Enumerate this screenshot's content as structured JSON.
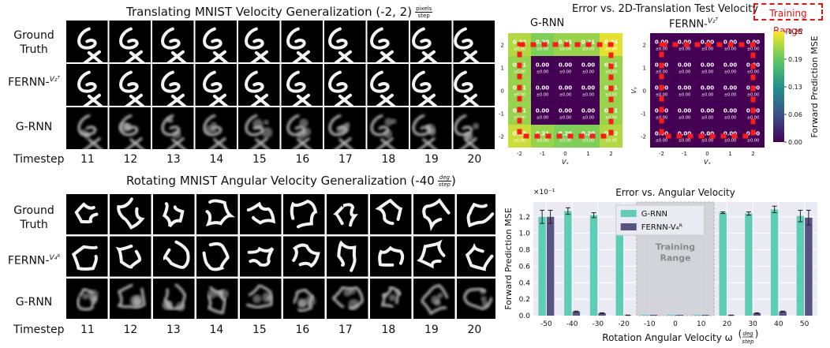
{
  "top_panel": {
    "title": "Translating MNIST Velocity Generalization (-2, 2)",
    "title_unit_num": "pixels",
    "title_unit_den": "step",
    "rows": [
      {
        "label_a": "Ground",
        "label_b": "Truth"
      },
      {
        "label_a": "FERNN-",
        "label_sup": "V₂ᵀ"
      },
      {
        "label_a": "G-RNN"
      }
    ],
    "timestep_label": "Timestep",
    "timesteps": [
      "11",
      "12",
      "13",
      "14",
      "15",
      "16",
      "17",
      "18",
      "19",
      "20"
    ]
  },
  "bottom_panel": {
    "title": "Rotating MNIST Angular Velocity Generalization (-40",
    "title_unit_num": "deg",
    "title_unit_den": "step",
    "title_end": ")",
    "rows": [
      {
        "label_a": "Ground",
        "label_b": "Truth"
      },
      {
        "label_a": "FERNN-",
        "label_sup": "V₄ᴿ"
      },
      {
        "label_a": "G-RNN"
      }
    ],
    "timestep_label": "Timestep",
    "timesteps": [
      "11",
      "12",
      "13",
      "14",
      "15",
      "16",
      "17",
      "18",
      "19",
      "20"
    ]
  },
  "heatmap": {
    "title": "Error vs. 2D-Translation Test Velocity",
    "legend_box": "Training Range",
    "left_title": "G-RNN",
    "right_title": "FERNN-",
    "right_title_sup": "V₂ᵀ",
    "xlabel": "Vₓ",
    "ylabel": "Vᵧ",
    "ticks": [
      "-2",
      "-1",
      "0",
      "1",
      "2"
    ],
    "colorbar_label": "Forward Prediction MSE",
    "colorbar_ticks": [
      "0.25",
      "0.19",
      "0.13",
      "0.06",
      "0.00"
    ],
    "grnn_values": [
      [
        "0.22",
        "0.20",
        "0.21",
        "0.21",
        "0.24"
      ],
      [
        "0.21",
        "0.00",
        "0.00",
        "0.00",
        "0.21"
      ],
      [
        "0.21",
        "0.00",
        "0.00",
        "0.00",
        "0.21"
      ],
      [
        "0.21",
        "0.00",
        "0.00",
        "0.00",
        "0.21"
      ],
      [
        "0.23",
        "0.21",
        "0.20",
        "0.20",
        "0.22"
      ]
    ],
    "fernn_values": [
      [
        "0.00",
        "0.00",
        "0.00",
        "0.00",
        "0.00"
      ],
      [
        "0.00",
        "0.00",
        "0.00",
        "0.00",
        "0.00"
      ],
      [
        "0.00",
        "0.00",
        "0.00",
        "0.00",
        "0.00"
      ],
      [
        "0.00",
        "0.00",
        "0.00",
        "0.00",
        "0.00"
      ],
      [
        "0.00",
        "0.00",
        "0.00",
        "0.00",
        "0.00"
      ]
    ],
    "std_label": "±0.00"
  },
  "chart_data": {
    "type": "bar",
    "title": "Error vs. Angular Velocity",
    "xlabel": "Rotation Angular Velocity ω",
    "xlabel_unit_num": "deg",
    "xlabel_unit_den": "step",
    "ylabel": "Forward Prediction MSE",
    "y_multiplier": "×10⁻¹",
    "categories": [
      "-50",
      "-40",
      "-30",
      "-20",
      "-10",
      "0",
      "10",
      "20",
      "30",
      "40",
      "50"
    ],
    "ylim": [
      0,
      1.38
    ],
    "yticks": [
      "0.0",
      "0.2",
      "0.4",
      "0.6",
      "0.8",
      "1.0",
      "1.2"
    ],
    "training_range_label_a": "Training",
    "training_range_label_b": "Range",
    "series": [
      {
        "name": "G-RNN",
        "color": "#5ecdb5",
        "values": [
          1.2,
          1.27,
          1.22,
          1.22,
          0.01,
          0.01,
          0.01,
          1.25,
          1.24,
          1.29,
          1.21
        ],
        "err": [
          0.08,
          0.04,
          0.03,
          0.02,
          0.0,
          0.0,
          0.0,
          0.01,
          0.02,
          0.04,
          0.07
        ]
      },
      {
        "name": "FERNN-V₄ᴿ",
        "color": "#595383",
        "values": [
          1.2,
          0.05,
          0.03,
          0.005,
          0.01,
          0.01,
          0.01,
          0.005,
          0.03,
          0.05,
          1.19
        ],
        "err": [
          0.08,
          0.005,
          0.005,
          0.002,
          0.0,
          0.0,
          0.0,
          0.002,
          0.005,
          0.005,
          0.09
        ]
      }
    ]
  }
}
